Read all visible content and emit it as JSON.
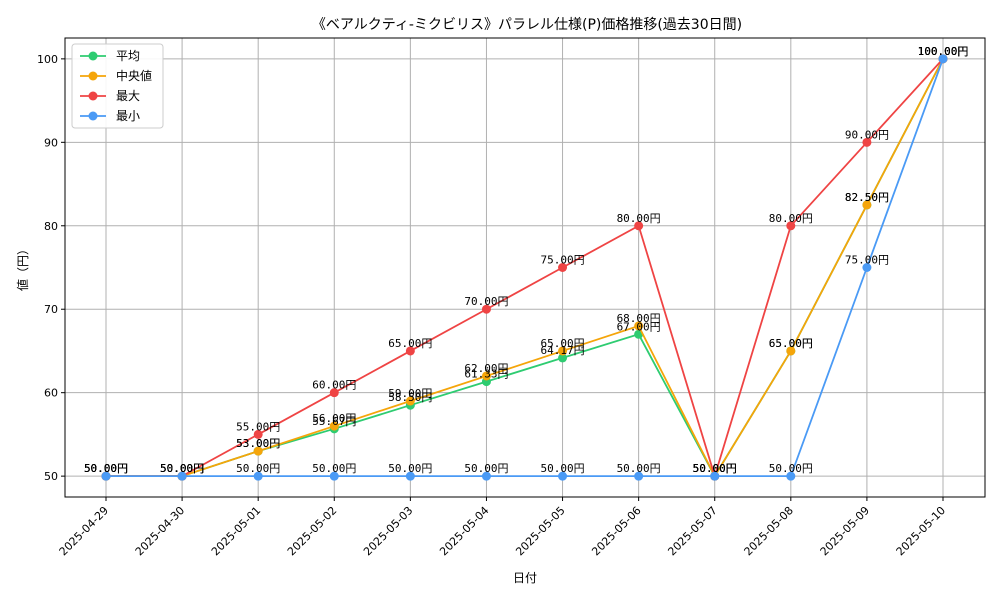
{
  "chart_data": {
    "type": "line",
    "title": "《ベアルクティ-ミクビリス》パラレル仕様(P)価格推移(過去30日間)",
    "xlabel": "日付",
    "ylabel": "値（円）",
    "categories": [
      "2025-04-29",
      "2025-04-30",
      "2025-05-01",
      "2025-05-02",
      "2025-05-03",
      "2025-05-04",
      "2025-05-05",
      "2025-05-06",
      "2025-05-07",
      "2025-05-08",
      "2025-05-09",
      "2025-05-10"
    ],
    "ylim": [
      47.5,
      102.5
    ],
    "yticks": [
      50,
      60,
      70,
      80,
      90,
      100
    ],
    "grid": true,
    "legend_position": "top-left",
    "value_suffix": "円",
    "series": [
      {
        "name": "平均",
        "color": "#2ecc71",
        "values": [
          50.0,
          50.0,
          53.0,
          55.67,
          58.5,
          61.33,
          64.17,
          67.0,
          50.0,
          65.0,
          82.5,
          100.0
        ]
      },
      {
        "name": "中央値",
        "color": "#f5a50a",
        "values": [
          50.0,
          50.0,
          53.0,
          56.0,
          59.0,
          62.0,
          65.0,
          68.0,
          50.0,
          65.0,
          82.5,
          100.0
        ]
      },
      {
        "name": "最大",
        "color": "#ef4444",
        "values": [
          50.0,
          50.0,
          55.0,
          60.0,
          65.0,
          70.0,
          75.0,
          80.0,
          50.0,
          80.0,
          90.0,
          100.0
        ]
      },
      {
        "name": "最小",
        "color": "#4a9af5",
        "values": [
          50.0,
          50.0,
          50.0,
          50.0,
          50.0,
          50.0,
          50.0,
          50.0,
          50.0,
          50.0,
          75.0,
          100.0
        ]
      }
    ]
  }
}
